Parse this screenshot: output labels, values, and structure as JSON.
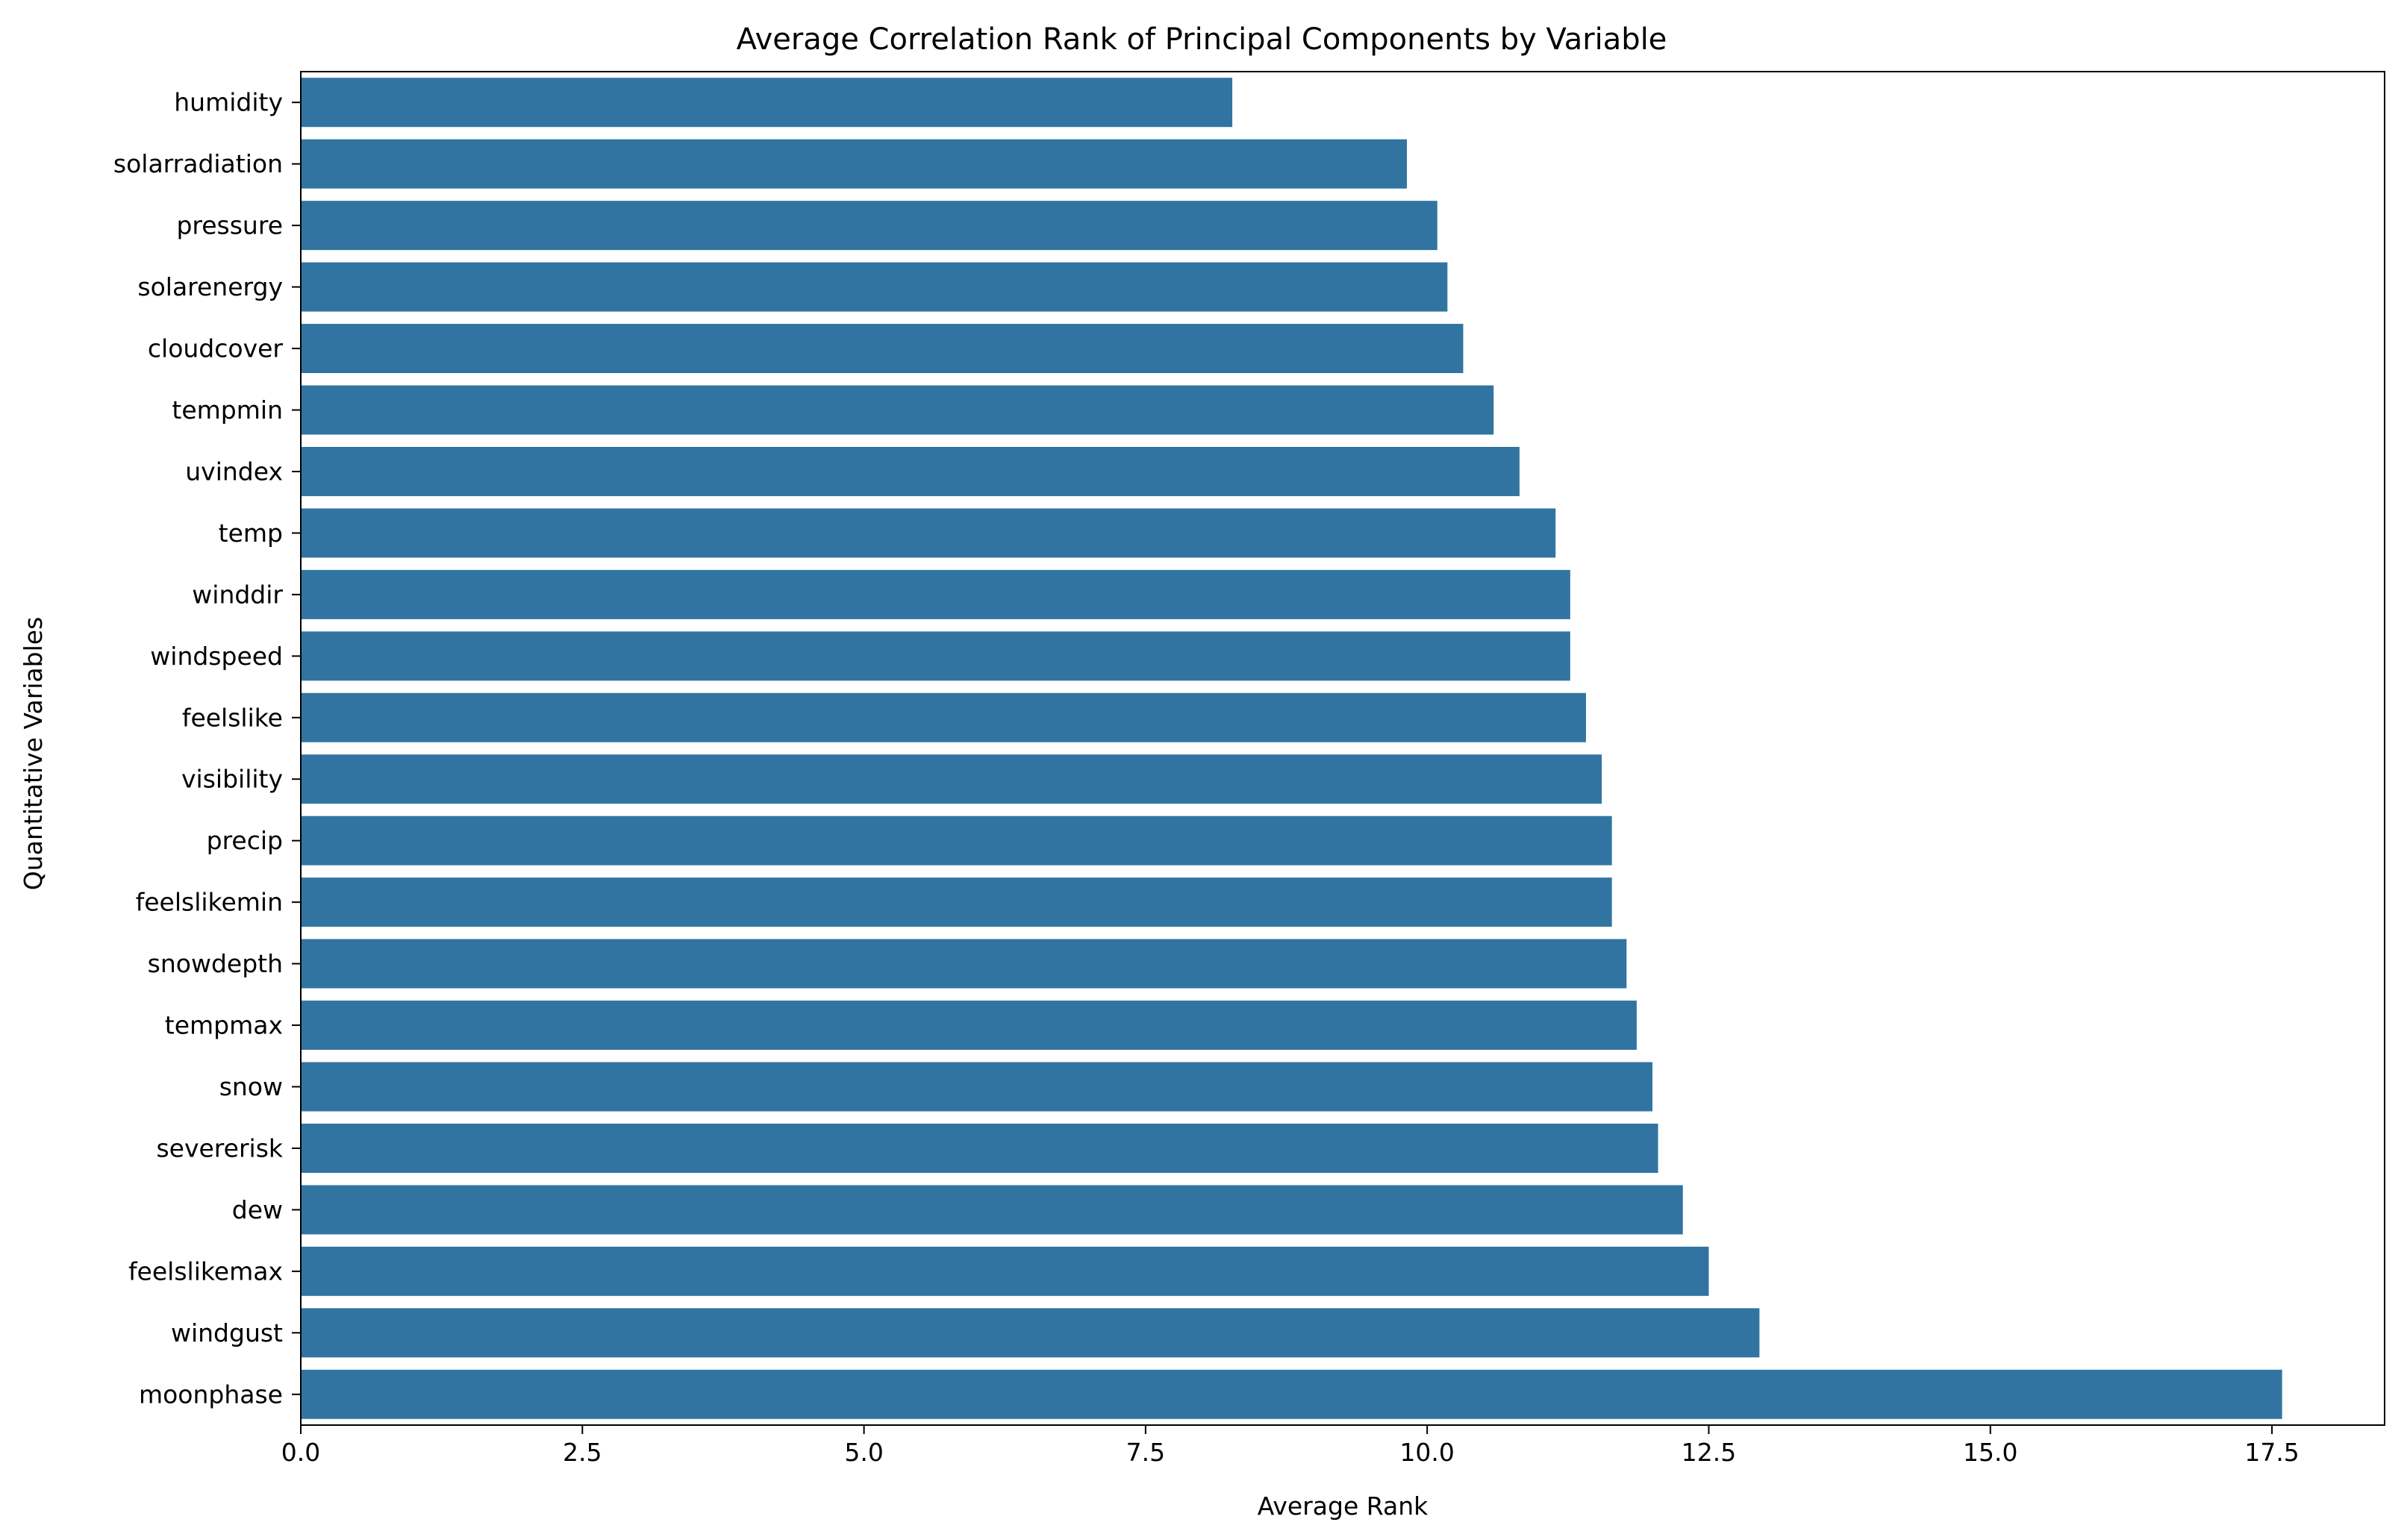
{
  "chart_data": {
    "type": "bar",
    "orientation": "horizontal",
    "title": "Average Correlation Rank of Principal Components by Variable",
    "xlabel": "Average Rank",
    "ylabel": "Quantitative Variables",
    "xlim": [
      0,
      18.5
    ],
    "xticks": [
      0.0,
      2.5,
      5.0,
      7.5,
      10.0,
      12.5,
      15.0,
      17.5
    ],
    "xtick_labels": [
      "0.0",
      "2.5",
      "5.0",
      "7.5",
      "10.0",
      "12.5",
      "15.0",
      "17.5"
    ],
    "grid": false,
    "bar_color": "#3274a1",
    "categories": [
      "humidity",
      "solarradiation",
      "pressure",
      "solarenergy",
      "cloudcover",
      "tempmin",
      "uvindex",
      "temp",
      "winddir",
      "windspeed",
      "feelslike",
      "visibility",
      "precip",
      "feelslikemin",
      "snowdepth",
      "tempmax",
      "snow",
      "severerisk",
      "dew",
      "feelslikemax",
      "windgust",
      "moonphase"
    ],
    "values": [
      8.27,
      9.82,
      10.09,
      10.18,
      10.32,
      10.59,
      10.82,
      11.14,
      11.27,
      11.27,
      11.41,
      11.55,
      11.64,
      11.64,
      11.77,
      11.86,
      12.0,
      12.05,
      12.27,
      12.5,
      12.95,
      17.59
    ]
  }
}
